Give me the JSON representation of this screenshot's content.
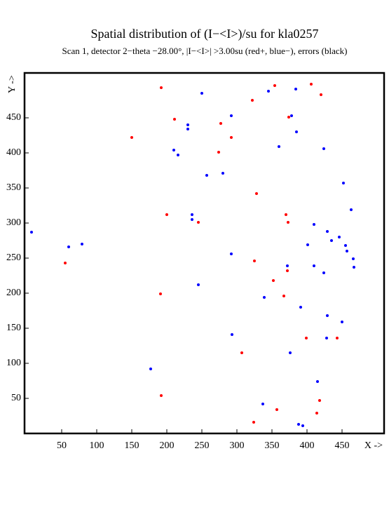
{
  "chart_data": {
    "type": "scatter",
    "title": "Spatial distribution of (I−<I>)/su for kla0257",
    "subtitle": "Scan  1, detector 2−theta −28.00°, |I−<I>| >3.00su (red+, blue−), errors (black)",
    "xlabel": "X ->",
    "ylabel": "Y ->",
    "xlim": [
      -3,
      510
    ],
    "ylim": [
      0,
      514
    ],
    "xticks": [
      50,
      100,
      150,
      200,
      250,
      300,
      350,
      400,
      450
    ],
    "yticks": [
      50,
      100,
      150,
      200,
      250,
      300,
      350,
      400,
      450
    ],
    "series": [
      {
        "color": "#ff0000",
        "x": [
          192,
          211,
          150,
          277,
          292,
          274,
          322,
          354,
          406,
          420,
          374,
          328,
          200,
          245,
          370,
          373,
          55,
          325,
          372,
          352,
          191,
          367,
          399,
          443,
          307,
          192,
          418,
          357,
          414,
          324
        ],
        "values": [
          493,
          448,
          422,
          442,
          422,
          401,
          475,
          496,
          498,
          483,
          451,
          342,
          312,
          301,
          312,
          301,
          243,
          246,
          232,
          218,
          199,
          196,
          136,
          136,
          115,
          54,
          47,
          34,
          29,
          16
        ]
      },
      {
        "color": "#0000ff",
        "x": [
          250,
          345,
          384,
          292,
          378,
          230,
          230,
          385,
          360,
          210,
          216,
          424,
          280,
          257,
          452,
          463,
          236,
          236,
          410,
          7,
          429,
          446,
          435,
          401,
          455,
          457,
          60,
          79,
          292,
          466,
          372,
          410,
          467,
          424,
          245,
          339,
          391,
          429,
          450,
          293,
          428,
          376,
          177,
          415,
          337,
          388,
          394
        ],
        "values": [
          485,
          488,
          491,
          453,
          453,
          440,
          434,
          430,
          409,
          404,
          397,
          406,
          371,
          368,
          357,
          319,
          312,
          305,
          298,
          287,
          288,
          280,
          275,
          269,
          268,
          260,
          266,
          270,
          256,
          249,
          239,
          239,
          237,
          229,
          212,
          194,
          180,
          168,
          159,
          141,
          136,
          115,
          92,
          74,
          42,
          13,
          11
        ]
      }
    ]
  }
}
